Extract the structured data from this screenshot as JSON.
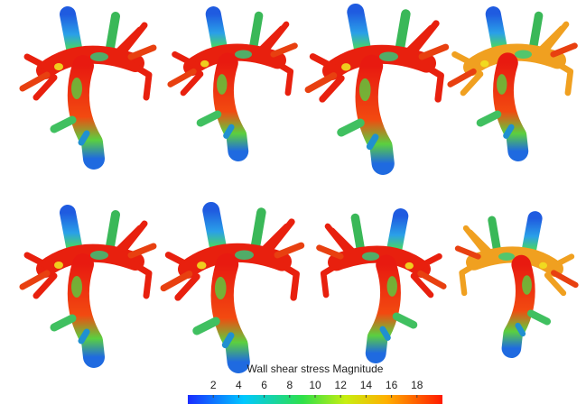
{
  "colorbar": {
    "title": "Wall shear stress Magnitude",
    "range": [
      0,
      20
    ],
    "ticks": [
      2,
      4,
      6,
      8,
      10,
      12,
      14,
      16,
      18
    ]
  }
}
